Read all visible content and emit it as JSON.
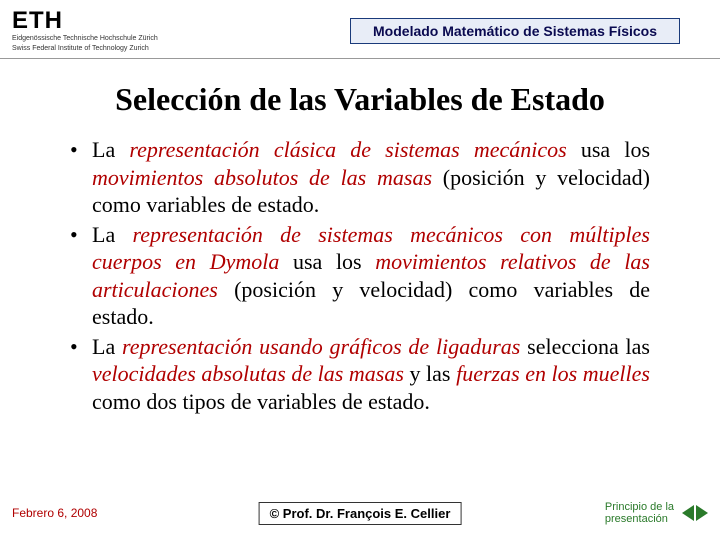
{
  "header": {
    "logo_text": "ETH",
    "logo_sub1": "Eidgenössische Technische Hochschule Zürich",
    "logo_sub2": "Swiss Federal Institute of Technology Zurich",
    "course_title": "Modelado Matemático de Sistemas Físicos"
  },
  "slide": {
    "title": "Selección de las Variables de Estado"
  },
  "bullets": [
    {
      "pre": "La ",
      "em1": "representación clásica de sistemas mecánicos",
      "mid1": " usa los ",
      "em2": "movimientos absolutos de las masas",
      "post": " (posición y velocidad) como variables de estado."
    },
    {
      "pre": "La ",
      "em1": "representación de sistemas mecánicos con múltiples cuerpos en Dymola",
      "mid1": " usa los ",
      "em2": "movimientos relativos de las articulaciones",
      "post": " (posición y velocidad) como variables de estado."
    },
    {
      "pre": "La ",
      "em1": "representación usando gráficos de ligaduras",
      "mid1": " selecciona las ",
      "em2": "velocidades absolutas de las masas",
      "mid2": " y las ",
      "em3": "fuerzas en los muelles",
      "post": " como dos tipos de variables de estado."
    }
  ],
  "footer": {
    "date": "Febrero 6, 2008",
    "author": "©  Prof. Dr. François E. Cellier",
    "nav_line1": "Principio de la",
    "nav_line2": "presentación"
  },
  "colors": {
    "accent_red": "#b00000",
    "nav_green": "#2a7a2a",
    "box_border": "#1a3a7a",
    "box_bg": "#e8edf7"
  }
}
